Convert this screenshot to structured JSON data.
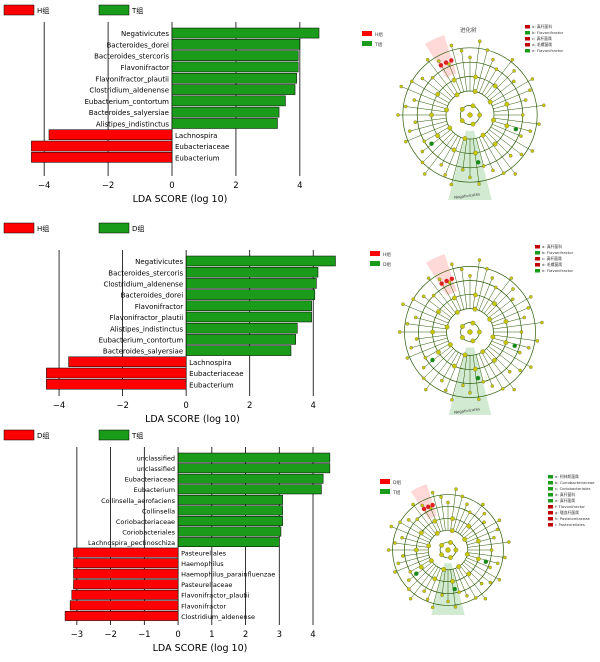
{
  "colors": {
    "red": "#ff0000",
    "green": "#1a9b1a",
    "gridline": "#000000",
    "clado_node": "#c8c800",
    "clado_ring": "#2a5a00"
  },
  "chart_data": [
    {
      "type": "bar",
      "orientation": "horizontal",
      "legend": [
        {
          "name": "H组",
          "color": "#ff0000"
        },
        {
          "name": "T组",
          "color": "#1a9b1a"
        }
      ],
      "legend_placement": "top-left",
      "xlabel": "LDA SCORE (log 10)",
      "xlim": [
        -4.6,
        5.1
      ],
      "xticks": [
        -4,
        -2,
        0,
        2,
        4
      ],
      "grid": true,
      "categories": [
        "Negativicutes",
        "Bacteroides_dorei",
        "Bacteroides_stercoris",
        "Flavonifractor",
        "Flavonifractor_plautii",
        "Clostridium_aldenense",
        "Eubacterium_contortum",
        "Bacteroides_salyersiae",
        "Alistipes_indistinctus",
        "Lachnospira",
        "Eubacteriaceae",
        "Eubacterium"
      ],
      "values": [
        4.6,
        4.0,
        3.95,
        3.95,
        3.9,
        3.85,
        3.55,
        3.35,
        3.3,
        -3.85,
        -4.4,
        -4.4
      ],
      "groups": [
        "T组",
        "T组",
        "T组",
        "T组",
        "T组",
        "T组",
        "T组",
        "T组",
        "T组",
        "H组",
        "H组",
        "H组"
      ]
    },
    {
      "type": "bar",
      "orientation": "horizontal",
      "legend": [
        {
          "name": "H组",
          "color": "#ff0000"
        },
        {
          "name": "D组",
          "color": "#1a9b1a"
        }
      ],
      "legend_placement": "top-left",
      "xlabel": "LDA SCORE (log 10)",
      "xlim": [
        -4.6,
        5.0
      ],
      "xticks": [
        -4,
        -2,
        0,
        2,
        4
      ],
      "grid": true,
      "categories": [
        "Negativicutes",
        "Bacteroides_stercoris",
        "Clostridium_aldenense",
        "Bacteroides_dorei",
        "Flavonifractor",
        "Flavonifractor_plautii",
        "Alistipes_indistinctus",
        "Eubacterium_contortum",
        "Bacteroides_salyersiae",
        "Lachnospira",
        "Eubacteriaceae",
        "Eubacterium"
      ],
      "values": [
        4.7,
        4.15,
        4.1,
        4.05,
        3.95,
        3.95,
        3.5,
        3.45,
        3.3,
        -3.7,
        -4.4,
        -4.4
      ],
      "groups": [
        "D组",
        "D组",
        "D组",
        "D组",
        "D组",
        "D组",
        "D组",
        "D组",
        "D组",
        "H组",
        "H组",
        "H组"
      ]
    },
    {
      "type": "bar",
      "orientation": "horizontal",
      "legend": [
        {
          "name": "D组",
          "color": "#ff0000"
        },
        {
          "name": "T组",
          "color": "#1a9b1a"
        }
      ],
      "legend_placement": "top-left",
      "xlabel": "LDA SCORE (log 10)",
      "xlim": [
        -3.5,
        4.8
      ],
      "xticks": [
        -3,
        -2,
        -1,
        0,
        1,
        2,
        3,
        4
      ],
      "grid": true,
      "categories": [
        "unclassified",
        "unclassified",
        "Eubacteriaceae",
        "Eubacterium",
        "Collinsella_aerofaciens",
        "Collinsella",
        "Coriobacteriaceae",
        "Coriobacteriales",
        "Lachnospira_pectinoschiza",
        "Pasteurellales",
        "Haemophilus",
        "Haemophilus_parainfluenzae",
        "Pasteurellaceae",
        "Flavonifractor_plautii",
        "Flavonifractor",
        "Clostridium_aldenense"
      ],
      "values": [
        4.5,
        4.5,
        4.3,
        4.25,
        3.1,
        3.1,
        3.1,
        3.05,
        3.0,
        -3.1,
        -3.1,
        -3.1,
        -3.1,
        -3.15,
        -3.2,
        -3.35
      ],
      "groups": [
        "T组",
        "T组",
        "T组",
        "T组",
        "T组",
        "T组",
        "T组",
        "T组",
        "T组",
        "D组",
        "D组",
        "D组",
        "D组",
        "D组",
        "D组",
        "D组"
      ]
    }
  ],
  "cladograms": [
    {
      "legend": [
        {
          "name": "H组",
          "color": "#ff0000"
        },
        {
          "name": "T组",
          "color": "#1a9b1a"
        }
      ],
      "title": "进化树",
      "taxa_legend": [
        {
          "label": "a: 真杆菌科",
          "color": "#c00000"
        },
        {
          "label": "b: Flavonifractor",
          "color": "#1a9b1a"
        },
        {
          "label": "c: 真杆菌属",
          "color": "#c00000"
        },
        {
          "label": "d: 毛螺菌属",
          "color": "#c00000"
        },
        {
          "label": "e: Flavonifractor",
          "color": "#1a9b1a"
        }
      ],
      "clade_label": "Negativicutes"
    },
    {
      "legend": [
        {
          "name": "H组",
          "color": "#ff0000"
        },
        {
          "name": "D组",
          "color": "#1a9b1a"
        }
      ],
      "taxa_legend": [
        {
          "label": "a: 真杆菌科",
          "color": "#c00000"
        },
        {
          "label": "b: Flavonifractor",
          "color": "#1a9b1a"
        },
        {
          "label": "c: 真杆菌属",
          "color": "#c00000"
        },
        {
          "label": "d: 毛螺菌属",
          "color": "#c00000"
        },
        {
          "label": "e: Flavonifractor",
          "color": "#1a9b1a"
        }
      ],
      "clade_label": "Negativicutes"
    },
    {
      "legend": [
        {
          "name": "D组",
          "color": "#ff0000"
        },
        {
          "name": "T组",
          "color": "#1a9b1a"
        }
      ],
      "taxa_legend": [
        {
          "label": "a: 柯林斯菌属",
          "color": "#1a9b1a"
        },
        {
          "label": "b: Coriobacteriaceae",
          "color": "#1a9b1a"
        },
        {
          "label": "c: Coriobacteriales",
          "color": "#1a9b1a"
        },
        {
          "label": "d: 真杆菌科",
          "color": "#1a9b1a"
        },
        {
          "label": "e: 真杆菌属",
          "color": "#1a9b1a"
        },
        {
          "label": "f: Flavonifractor",
          "color": "#c00000"
        },
        {
          "label": "g: 嗜血杆菌属",
          "color": "#c00000"
        },
        {
          "label": "h: Pasteurellaceae",
          "color": "#c00000"
        },
        {
          "label": "i: Pasteurellales",
          "color": "#c00000"
        }
      ],
      "clade_label": ""
    }
  ]
}
